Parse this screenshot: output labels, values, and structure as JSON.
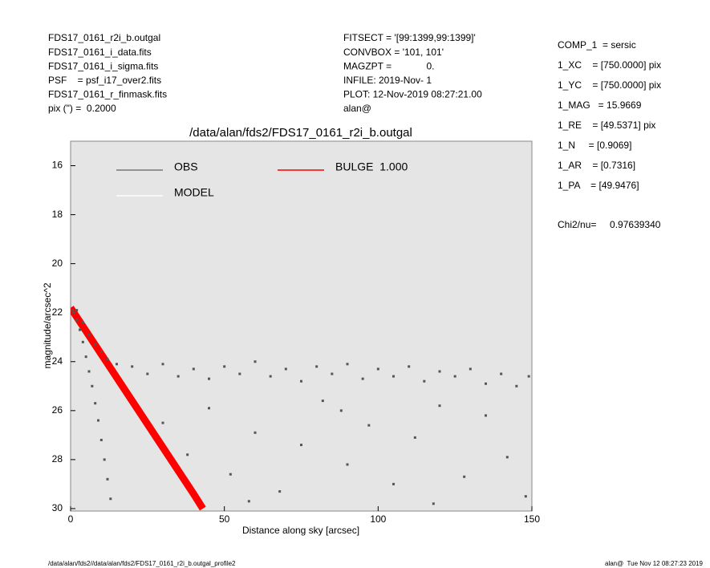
{
  "header": {
    "left": [
      "FDS17_0161_r2i_b.outgal",
      "FDS17_0161_i_data.fits",
      "FDS17_0161_i_sigma.fits",
      "PSF    = psf_i17_over2.fits",
      "FDS17_0161_r_finmask.fits",
      "pix (\") =  0.2000"
    ],
    "middle": [
      "FITSECT = '[99:1399,99:1399]'",
      "CONVBOX = '101, 101'",
      "MAGZPT =             0.",
      "INFILE: 2019-Nov- 1",
      "PLOT: 12-Nov-2019 08:27:21.00",
      "alan@"
    ],
    "right": [
      "COMP_1  = sersic",
      "1_XC    = [750.0000] pix",
      "1_YC    = [750.0000] pix",
      "1_MAG   = 15.9669",
      "1_RE    = [49.5371] pix",
      "1_N     = [0.9069]",
      "1_AR    = [0.7316]",
      "1_PA    = [49.9476]"
    ],
    "chi2": "Chi2/nu=     0.97639340"
  },
  "footer": {
    "left": "/data/alan/fds2//data/alan/fds2/FDS17_0161_r2i_b.outgal_profile2",
    "right": "alan@  Tue Nov 12 08:27:23 2019"
  },
  "chart_data": {
    "type": "scatter",
    "title": "/data/alan/fds2/FDS17_0161_r2i_b.outgal",
    "x_label": "Distance along sky [arcsec]",
    "y_label": "magnitude/arcsec^2",
    "xlim": [
      0,
      150
    ],
    "xticks": [
      0,
      50,
      100,
      150
    ],
    "ylim": [
      15,
      30.1
    ],
    "yticks": [
      16,
      18,
      20,
      22,
      24,
      26,
      28,
      30
    ],
    "y_inverted": true,
    "grid": false,
    "series": [
      {
        "name": "OBS",
        "color": "#555555",
        "style": "markers",
        "x": [
          0.5,
          1,
          2,
          3,
          4,
          5,
          6,
          7,
          8,
          9,
          10,
          11,
          12,
          13,
          2,
          4,
          6,
          8,
          10,
          12,
          15,
          20,
          25,
          30,
          35,
          40,
          45,
          50,
          55,
          60,
          65,
          70,
          75,
          80,
          85,
          90,
          95,
          100,
          105,
          110,
          115,
          120,
          125,
          130,
          135,
          140,
          145,
          149,
          30,
          38,
          45,
          52,
          60,
          68,
          75,
          82,
          90,
          97,
          105,
          112,
          120,
          128,
          135,
          142,
          148,
          58,
          88,
          118
        ],
        "values": [
          21.9,
          22.0,
          22.3,
          22.7,
          23.2,
          23.8,
          24.4,
          25.0,
          25.7,
          26.4,
          27.2,
          28.0,
          28.8,
          29.6,
          21.9,
          22.4,
          22.9,
          23.3,
          23.6,
          23.9,
          24.1,
          24.2,
          24.5,
          24.1,
          24.6,
          24.3,
          24.7,
          24.2,
          24.5,
          24.0,
          24.6,
          24.3,
          24.8,
          24.2,
          24.5,
          24.1,
          24.7,
          24.3,
          24.6,
          24.2,
          24.8,
          24.4,
          24.6,
          24.3,
          24.9,
          24.5,
          25.0,
          24.6,
          26.5,
          27.8,
          25.9,
          28.6,
          26.9,
          29.3,
          27.4,
          25.6,
          28.2,
          26.6,
          29.0,
          27.1,
          25.8,
          28.7,
          26.2,
          27.9,
          29.5,
          29.7,
          26.0,
          29.8
        ]
      },
      {
        "name": "MODEL",
        "color": "#ffffff",
        "style": "line",
        "x": [
          0,
          10,
          20,
          30,
          40,
          43
        ],
        "values": [
          21.8,
          23.7,
          25.6,
          27.5,
          29.4,
          30.0
        ]
      },
      {
        "name": "BULGE  1.000",
        "color": "#ff0000",
        "style": "band",
        "x": [
          0,
          10,
          20,
          30,
          40,
          43
        ],
        "values": [
          21.8,
          23.7,
          25.6,
          27.5,
          29.4,
          30.0
        ]
      }
    ]
  }
}
